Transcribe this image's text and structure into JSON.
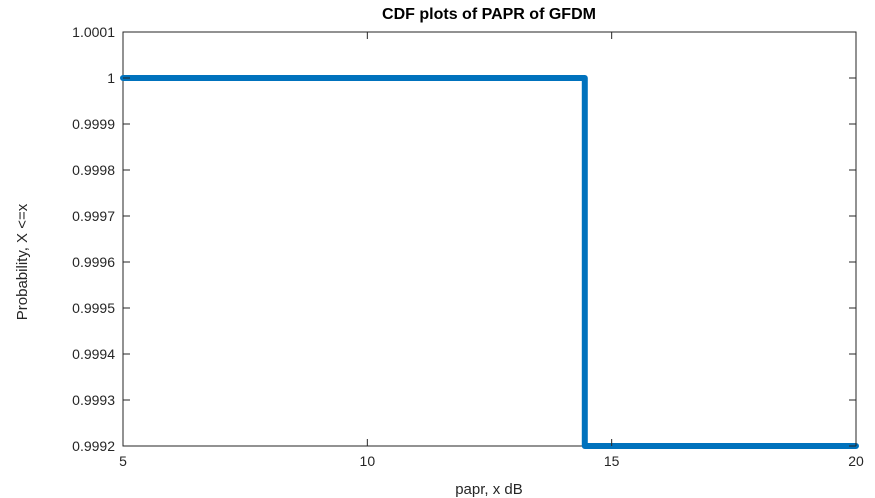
{
  "chart_data": {
    "type": "line",
    "title": "CDF plots of PAPR of GFDM",
    "xlabel": "papr, x dB",
    "ylabel": "Probability, X <=x",
    "xlim": [
      5,
      20
    ],
    "ylim": [
      0.9992,
      1.0001
    ],
    "x_ticks": [
      5,
      10,
      15,
      20
    ],
    "x_tick_labels": [
      "5",
      "10",
      "15",
      "20"
    ],
    "y_ticks": [
      0.9992,
      0.9993,
      0.9994,
      0.9995,
      0.9996,
      0.9997,
      0.9998,
      0.9999,
      1.0,
      1.0001
    ],
    "y_tick_labels": [
      "0.9992",
      "0.9993",
      "0.9994",
      "0.9995",
      "0.9996",
      "0.9997",
      "0.9998",
      "0.9999",
      "1",
      "1.0001"
    ],
    "grid": false,
    "series": [
      {
        "color": "#0072BD",
        "x": [
          5,
          14.45,
          14.45,
          20
        ],
        "y": [
          1.0,
          1.0,
          0.9992,
          0.9992
        ]
      }
    ]
  }
}
